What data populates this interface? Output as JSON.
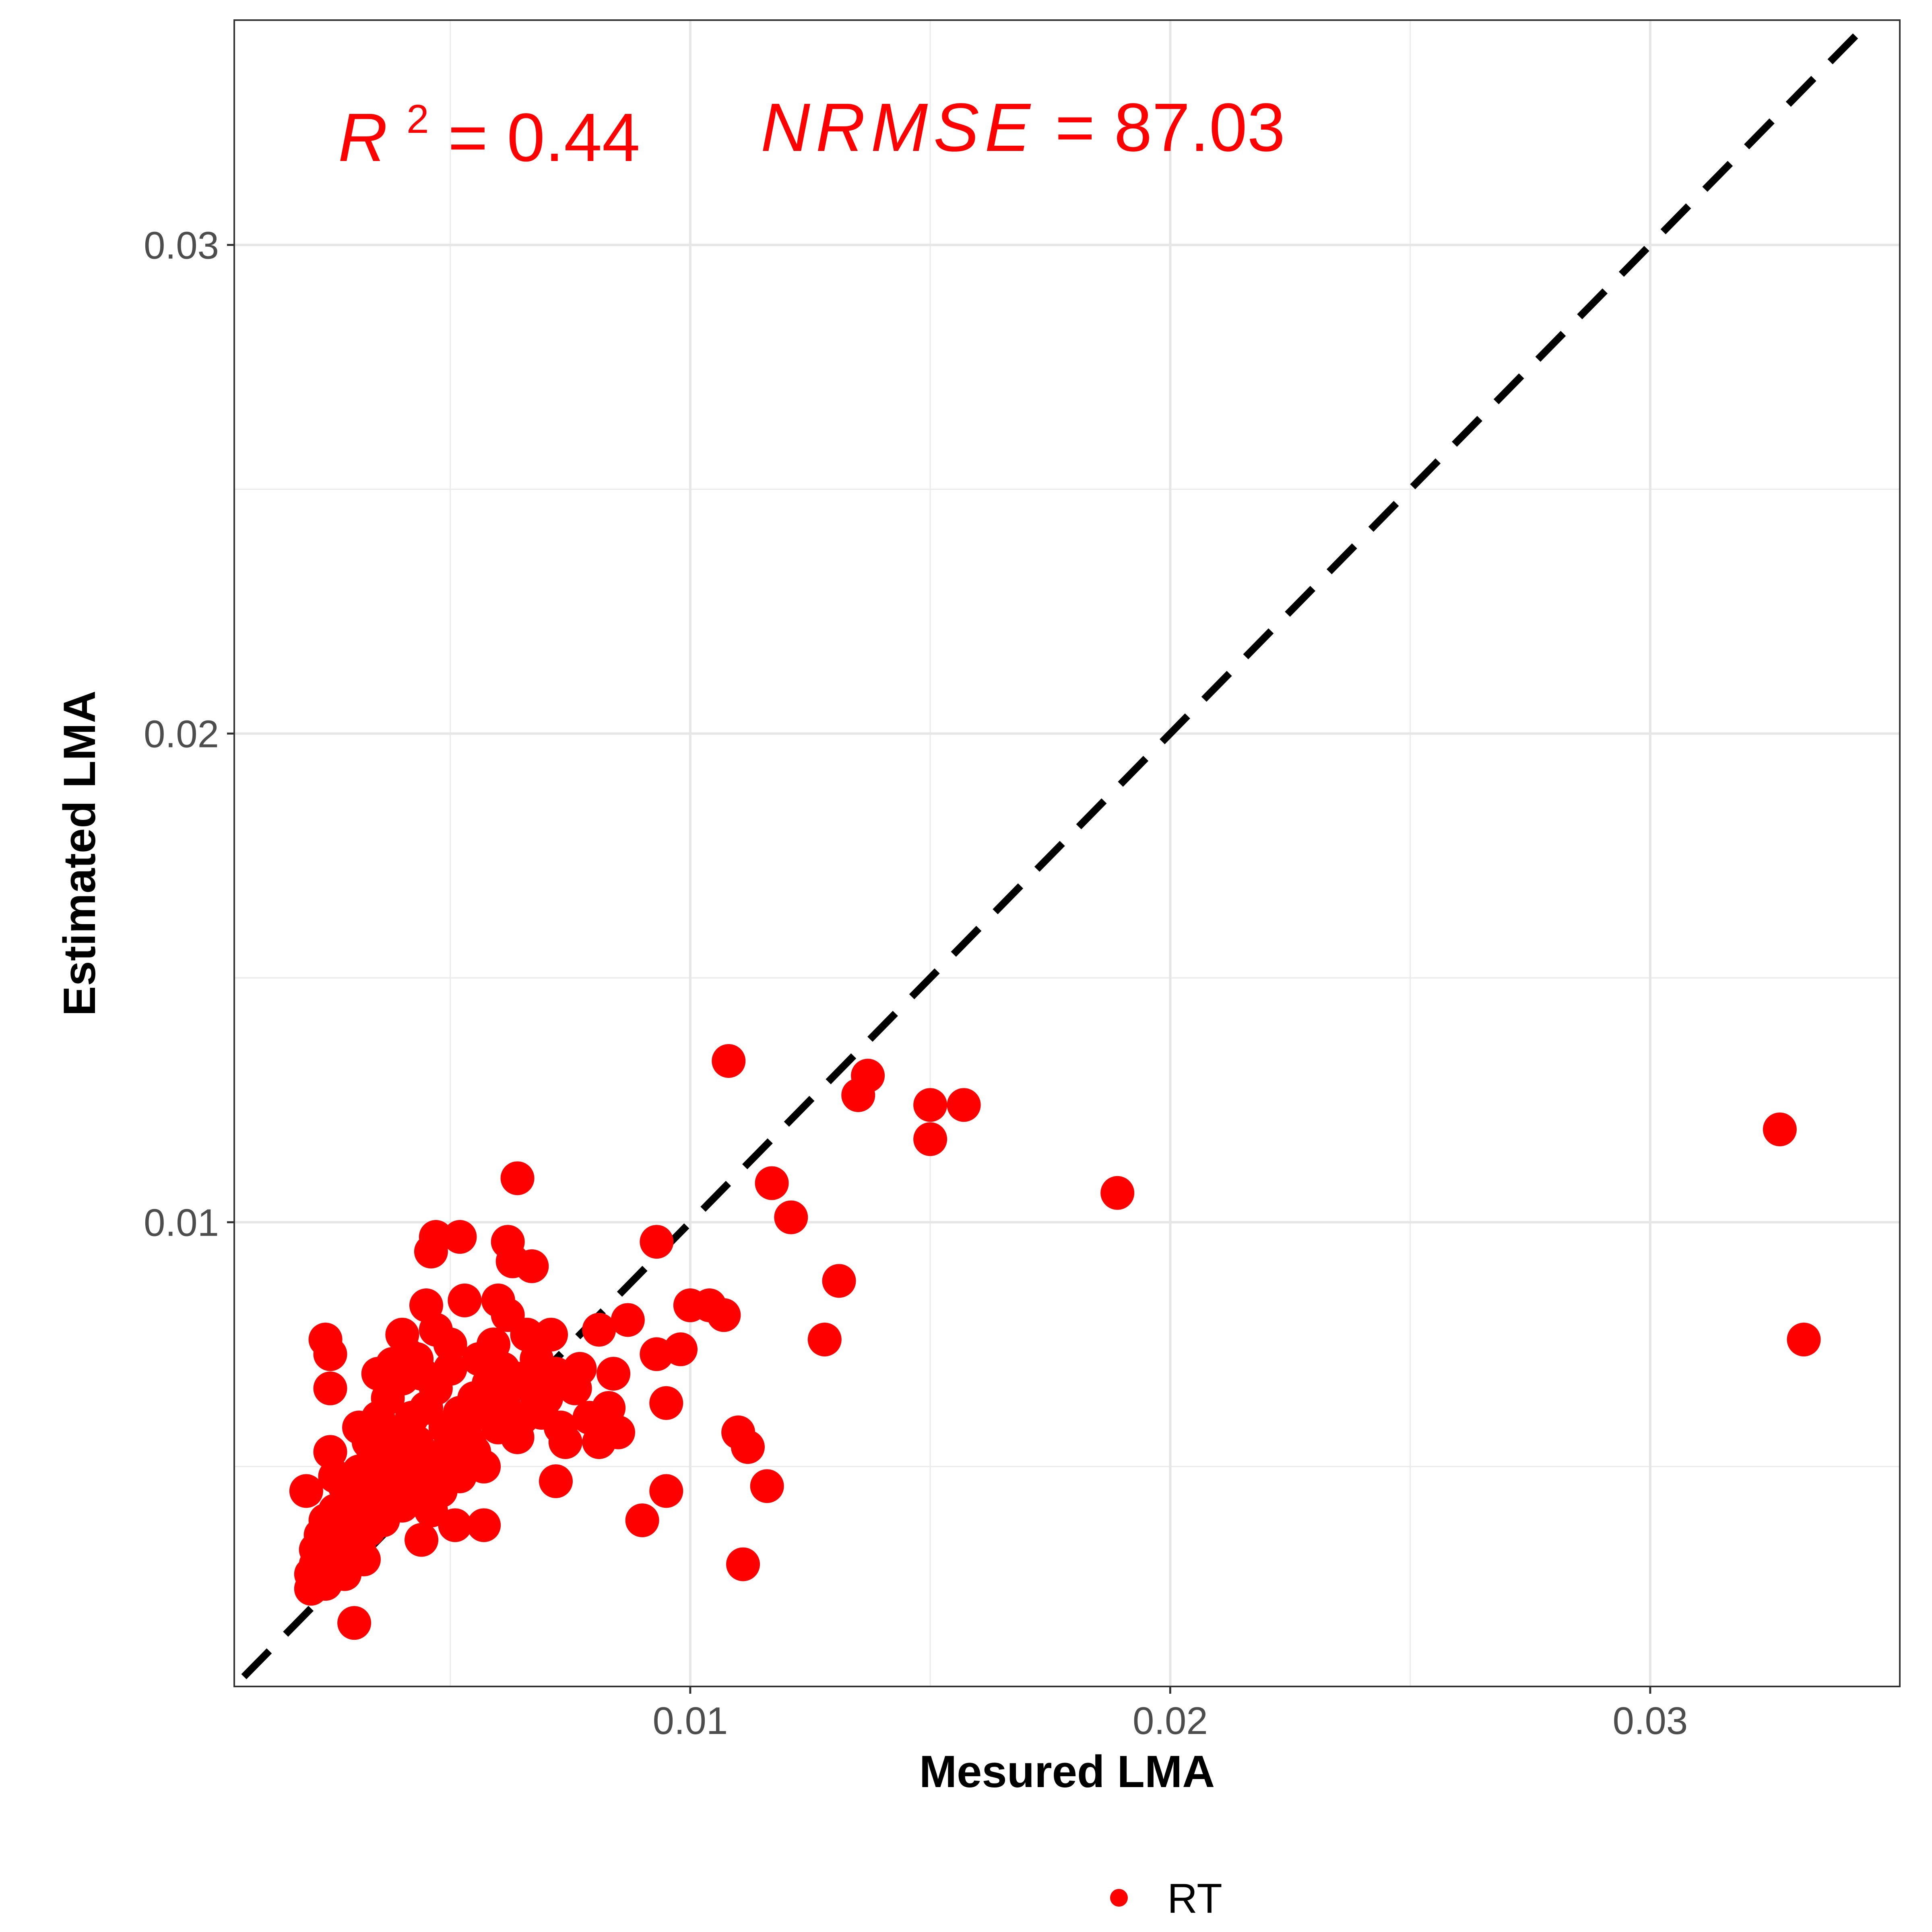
{
  "chart_data": {
    "type": "scatter",
    "title": "",
    "xlabel": "Mesured LMA",
    "ylabel": "Estimated LMA",
    "xlim": [
      0.0005,
      0.0352
    ],
    "ylim": [
      0.0005,
      0.0346
    ],
    "x_ticks": [
      {
        "value": 0.01,
        "label": "0.01"
      },
      {
        "value": 0.02,
        "label": "0.02"
      },
      {
        "value": 0.03,
        "label": "0.03"
      }
    ],
    "y_ticks": [
      {
        "value": 0.01,
        "label": "0.01"
      },
      {
        "value": 0.02,
        "label": "0.02"
      },
      {
        "value": 0.03,
        "label": "0.03"
      }
    ],
    "minor_grid": [
      0.005,
      0.015,
      0.025
    ],
    "grid": true,
    "reference_line": {
      "type": "1:1",
      "style": "dashed",
      "color": "#000000"
    },
    "annotations": {
      "r2": {
        "symbol": "R",
        "exponent": "2",
        "value": "0.44"
      },
      "nrmse": {
        "symbol": "NRMSE",
        "value": "87.03"
      }
    },
    "legend": {
      "position": "bottom",
      "label": "RT"
    },
    "series": [
      {
        "name": "RT",
        "color": "#ff0000",
        "points": [
          [
            0.0108,
            0.0133
          ],
          [
            0.0137,
            0.013
          ],
          [
            0.0135,
            0.0126
          ],
          [
            0.015,
            0.0124
          ],
          [
            0.0157,
            0.0124
          ],
          [
            0.015,
            0.0117
          ],
          [
            0.0117,
            0.0108
          ],
          [
            0.0121,
            0.0101
          ],
          [
            0.0189,
            0.0106
          ],
          [
            0.0327,
            0.0119
          ],
          [
            0.0332,
            0.0076
          ],
          [
            0.0131,
            0.0088
          ],
          [
            0.0128,
            0.0076
          ],
          [
            0.0064,
            0.0109
          ],
          [
            0.0052,
            0.0097
          ],
          [
            0.0047,
            0.0097
          ],
          [
            0.0046,
            0.0094
          ],
          [
            0.0062,
            0.0096
          ],
          [
            0.0067,
            0.0091
          ],
          [
            0.0063,
            0.0092
          ],
          [
            0.0093,
            0.0096
          ],
          [
            0.0104,
            0.0083
          ],
          [
            0.01,
            0.0083
          ],
          [
            0.0107,
            0.0081
          ],
          [
            0.0045,
            0.0083
          ],
          [
            0.0053,
            0.0084
          ],
          [
            0.006,
            0.0084
          ],
          [
            0.004,
            0.0077
          ],
          [
            0.0024,
            0.0076
          ],
          [
            0.0025,
            0.0073
          ],
          [
            0.0025,
            0.0066
          ],
          [
            0.0025,
            0.0053
          ],
          [
            0.002,
            0.0045
          ],
          [
            0.003,
            0.0018
          ],
          [
            0.0095,
            0.0063
          ],
          [
            0.0095,
            0.0045
          ],
          [
            0.009,
            0.0039
          ],
          [
            0.011,
            0.0057
          ],
          [
            0.0112,
            0.0054
          ],
          [
            0.0116,
            0.0046
          ],
          [
            0.0111,
            0.003
          ],
          [
            0.0072,
            0.0047
          ],
          [
            0.0064,
            0.0056
          ],
          [
            0.0074,
            0.0055
          ],
          [
            0.0081,
            0.0055
          ],
          [
            0.0085,
            0.0057
          ],
          [
            0.0083,
            0.0062
          ],
          [
            0.0093,
            0.0073
          ],
          [
            0.0098,
            0.0074
          ],
          [
            0.0087,
            0.008
          ],
          [
            0.0081,
            0.0078
          ],
          [
            0.0071,
            0.0077
          ],
          [
            0.0057,
            0.0038
          ],
          [
            0.0044,
            0.0035
          ],
          [
            0.0051,
            0.0038
          ],
          [
            0.0021,
            0.0025
          ],
          [
            0.0022,
            0.003
          ],
          [
            0.0027,
            0.003
          ],
          [
            0.0023,
            0.0036
          ],
          [
            0.0026,
            0.0041
          ],
          [
            0.0029,
            0.0041
          ],
          [
            0.0031,
            0.0034
          ],
          [
            0.0033,
            0.004
          ],
          [
            0.0035,
            0.0045
          ],
          [
            0.0038,
            0.005
          ],
          [
            0.0041,
            0.0048
          ],
          [
            0.0043,
            0.0055
          ],
          [
            0.0046,
            0.0052
          ],
          [
            0.0049,
            0.0058
          ],
          [
            0.0052,
            0.0061
          ],
          [
            0.0055,
            0.0064
          ],
          [
            0.0058,
            0.0067
          ],
          [
            0.0061,
            0.007
          ],
          [
            0.0064,
            0.0068
          ],
          [
            0.0068,
            0.0072
          ],
          [
            0.007,
            0.0064
          ],
          [
            0.0076,
            0.0066
          ],
          [
            0.0079,
            0.006
          ],
          [
            0.0037,
            0.0064
          ],
          [
            0.004,
            0.0068
          ],
          [
            0.0043,
            0.0072
          ],
          [
            0.0047,
            0.0066
          ],
          [
            0.005,
            0.007
          ],
          [
            0.0054,
            0.0055
          ],
          [
            0.0057,
            0.005
          ],
          [
            0.006,
            0.0058
          ],
          [
            0.0033,
            0.0055
          ],
          [
            0.0031,
            0.0058
          ],
          [
            0.0035,
            0.006
          ],
          [
            0.0039,
            0.0057
          ],
          [
            0.0042,
            0.006
          ],
          [
            0.0045,
            0.0062
          ],
          [
            0.0048,
            0.0045
          ],
          [
            0.0052,
            0.0048
          ],
          [
            0.0028,
            0.0046
          ],
          [
            0.0031,
            0.0049
          ],
          [
            0.0034,
            0.0052
          ],
          [
            0.0036,
            0.0047
          ],
          [
            0.0039,
            0.0043
          ],
          [
            0.0025,
            0.0034
          ],
          [
            0.0024,
            0.0039
          ],
          [
            0.0027,
            0.0036
          ],
          [
            0.003,
            0.0044
          ],
          [
            0.0033,
            0.0037
          ],
          [
            0.0022,
            0.0033
          ],
          [
            0.0021,
            0.0028
          ],
          [
            0.0024,
            0.0026
          ],
          [
            0.0028,
            0.0028
          ],
          [
            0.0032,
            0.0031
          ],
          [
            0.0036,
            0.0039
          ],
          [
            0.004,
            0.0042
          ],
          [
            0.0044,
            0.0046
          ],
          [
            0.0047,
            0.0051
          ],
          [
            0.005,
            0.0054
          ],
          [
            0.0053,
            0.0057
          ],
          [
            0.0057,
            0.0061
          ],
          [
            0.0061,
            0.0063
          ],
          [
            0.0065,
            0.006
          ],
          [
            0.0069,
            0.0061
          ],
          [
            0.0073,
            0.0058
          ],
          [
            0.0077,
            0.007
          ],
          [
            0.0047,
            0.0078
          ],
          [
            0.005,
            0.0075
          ],
          [
            0.0041,
            0.0073
          ],
          [
            0.0038,
            0.0071
          ],
          [
            0.0035,
            0.0069
          ],
          [
            0.0044,
            0.0069
          ],
          [
            0.0056,
            0.0072
          ],
          [
            0.0059,
            0.0075
          ],
          [
            0.0066,
            0.0077
          ],
          [
            0.0084,
            0.0069
          ],
          [
            0.0062,
            0.0081
          ],
          [
            0.0037,
            0.0054
          ],
          [
            0.0026,
            0.0048
          ],
          [
            0.0042,
            0.0051
          ],
          [
            0.0055,
            0.0053
          ],
          [
            0.0067,
            0.0066
          ],
          [
            0.0072,
            0.0069
          ],
          [
            0.0046,
            0.0041
          ],
          [
            0.0034,
            0.0043
          ],
          [
            0.0029,
            0.0038
          ],
          [
            0.003,
            0.0033
          ],
          [
            0.0027,
            0.004
          ],
          [
            0.0032,
            0.0047
          ],
          [
            0.0036,
            0.0051
          ]
        ]
      }
    ]
  }
}
